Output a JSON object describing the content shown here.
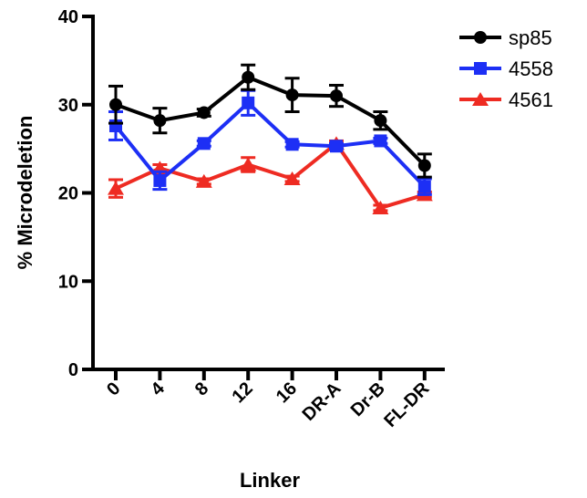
{
  "chart_data": {
    "type": "line",
    "title": "",
    "xlabel": "Linker",
    "ylabel": "% Microdeletion",
    "categories": [
      "0",
      "4",
      "8",
      "12",
      "16",
      "DR-A",
      "Dr-B",
      "FL-DR"
    ],
    "ylim": [
      0,
      40
    ],
    "yticks": [
      "0",
      "10",
      "20",
      "30",
      "40"
    ],
    "grid": false,
    "legend_position": "top-right",
    "error_bars": true,
    "series": [
      {
        "name": "sp85",
        "color": "#000000",
        "marker": "circle",
        "values": [
          30.0,
          28.2,
          29.1,
          33.1,
          31.1,
          31.0,
          28.2,
          23.1
        ],
        "errors": [
          2.1,
          1.4,
          0.4,
          1.4,
          1.9,
          1.2,
          1.0,
          1.3
        ]
      },
      {
        "name": "4558",
        "color": "#1d2ff5",
        "marker": "square",
        "values": [
          27.6,
          21.4,
          25.6,
          30.2,
          25.5,
          25.3,
          25.9,
          20.7
        ],
        "errors": [
          1.6,
          1.0,
          0.3,
          1.4,
          0.3,
          0.3,
          0.3,
          0.9
        ]
      },
      {
        "name": "4561",
        "color": "#ee2b22",
        "marker": "triangle",
        "values": [
          20.5,
          22.8,
          21.3,
          23.2,
          21.6,
          25.6,
          18.3,
          19.8
        ],
        "errors": [
          1.0,
          0.4,
          0.3,
          0.8,
          0.3,
          0.3,
          0.3,
          0.3
        ]
      }
    ]
  }
}
